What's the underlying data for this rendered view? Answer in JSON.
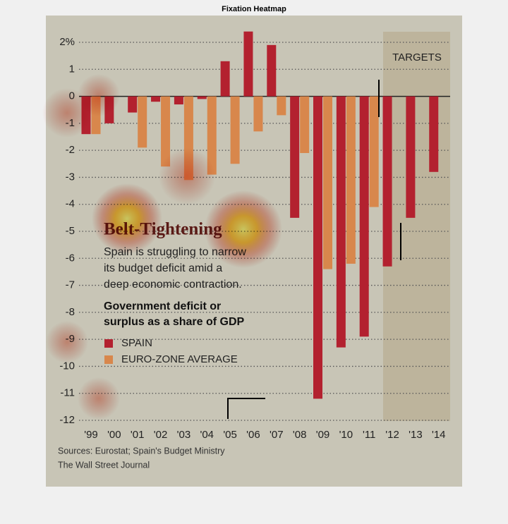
{
  "figure_title": "Fixation Heatmap",
  "chart_data": {
    "type": "bar",
    "title": "Belt-Tightening",
    "subtitle": [
      "Spain is struggling to narrow",
      "its budget deficit amid a",
      "deep economic contraction."
    ],
    "description": [
      "Government deficit or",
      "surplus as a share of GDP"
    ],
    "annotation": "TARGETS",
    "sources": [
      "Sources: Eurostat; Spain's Budget Ministry",
      "The Wall Street Journal"
    ],
    "categories": [
      "'99",
      "'00",
      "'01",
      "'02",
      "'03",
      "'04",
      "'05",
      "'06",
      "'07",
      "'08",
      "'09",
      "'10",
      "'11",
      "'12",
      "'13",
      "'14"
    ],
    "series": [
      {
        "name": "SPAIN",
        "color": "#b3212f",
        "values": [
          -1.4,
          -1.0,
          -0.6,
          -0.2,
          -0.3,
          -0.1,
          1.3,
          2.4,
          1.9,
          -4.5,
          -11.2,
          -9.3,
          -8.9,
          -6.3,
          -4.5,
          -2.8
        ]
      },
      {
        "name": "EURO-ZONE AVERAGE",
        "color": "#d8874c",
        "values": [
          -1.4,
          null,
          -1.9,
          -2.6,
          -3.1,
          -2.9,
          -2.5,
          -1.3,
          -0.7,
          -2.1,
          -6.4,
          -6.2,
          -4.1,
          null,
          null,
          null
        ]
      }
    ],
    "ylim": [
      -12,
      2
    ],
    "yticks": [
      {
        "value": 2,
        "label": "2%"
      },
      1,
      0,
      -1,
      -2,
      -3,
      -4,
      -5,
      -6,
      -7,
      -8,
      -9,
      -10,
      -11,
      -12
    ],
    "grid": true
  }
}
